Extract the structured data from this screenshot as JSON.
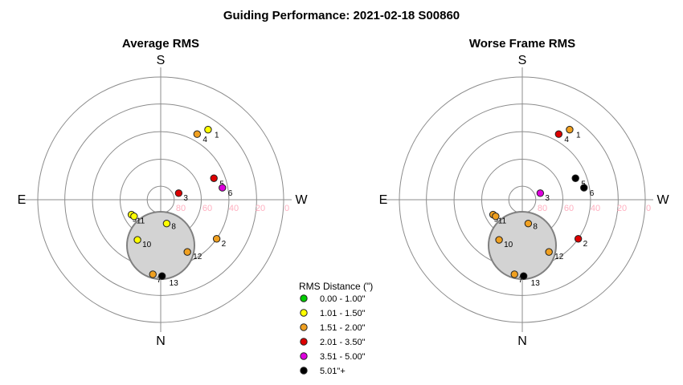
{
  "figure": {
    "title": "Guiding Performance: 2021-02-18 S00860"
  },
  "directions": {
    "south": "S",
    "north": "N",
    "east": "E",
    "west": "W"
  },
  "radial_ticks": [
    "80",
    "60",
    "40",
    "20",
    "0"
  ],
  "legend": {
    "title": "RMS Distance (\")",
    "entries": [
      {
        "label": "0.00 - 1.00\"",
        "color": "#00cc00"
      },
      {
        "label": "1.01 - 1.50\"",
        "color": "#ffff00"
      },
      {
        "label": "1.51 - 2.00\"",
        "color": "#f0a020"
      },
      {
        "label": "2.01 - 3.50\"",
        "color": "#dd0000"
      },
      {
        "label": "3.51 - 5.00\"",
        "color": "#dd00dd"
      },
      {
        "label": "5.01\"+",
        "color": "#000000"
      }
    ]
  },
  "chart_data": [
    {
      "type": "scatter",
      "coordinate_system": "polar (altitude 0-90 deg radial, azimuth; S top, N bottom, E left, W right)",
      "title": "Average RMS",
      "radial_ticks": [
        80,
        60,
        40,
        20,
        0
      ],
      "points": [
        {
          "label": "1",
          "alt": 28,
          "az": 326,
          "category": "1.01 - 1.50\""
        },
        {
          "label": "2",
          "alt": 40,
          "az": 235,
          "category": "1.51 - 2.00\""
        },
        {
          "label": "3",
          "alt": 76,
          "az": 290,
          "category": "2.01 - 3.50\""
        },
        {
          "label": "4",
          "alt": 35,
          "az": 331,
          "category": "1.51 - 2.00\""
        },
        {
          "label": "5",
          "alt": 48,
          "az": 292,
          "category": "2.01 - 3.50\""
        },
        {
          "label": "6",
          "alt": 44,
          "az": 281,
          "category": "3.51 - 5.00\""
        },
        {
          "label": "7",
          "alt": 35,
          "az": 174,
          "category": "1.51 - 2.00\""
        },
        {
          "label": "8",
          "alt": 72,
          "az": 194,
          "category": "1.01 - 1.50\""
        },
        {
          "label": "9",
          "alt": 66,
          "az": 117,
          "category": "1.01 - 1.50\""
        },
        {
          "label": "10",
          "alt": 56,
          "az": 150,
          "category": "1.01 - 1.50\""
        },
        {
          "label": "11",
          "alt": 67,
          "az": 122,
          "category": "1.01 - 1.50\""
        },
        {
          "label": "12",
          "alt": 47,
          "az": 207,
          "category": "1.51 - 2.00\""
        },
        {
          "label": "13",
          "alt": 34,
          "az": 181,
          "category": "5.01\"+"
        }
      ]
    },
    {
      "type": "scatter",
      "coordinate_system": "polar (altitude 0-90 deg radial, azimuth; S top, N bottom, E left, W right)",
      "title": "Worse Frame RMS",
      "radial_ticks": [
        80,
        60,
        40,
        20,
        0
      ],
      "points": [
        {
          "label": "1",
          "alt": 28,
          "az": 326,
          "category": "1.51 - 2.00\""
        },
        {
          "label": "2",
          "alt": 40,
          "az": 235,
          "category": "2.01 - 3.50\""
        },
        {
          "label": "3",
          "alt": 76,
          "az": 290,
          "category": "3.51 - 5.00\""
        },
        {
          "label": "4",
          "alt": 35,
          "az": 331,
          "category": "2.01 - 3.50\""
        },
        {
          "label": "5",
          "alt": 48,
          "az": 292,
          "category": "5.01\"+"
        },
        {
          "label": "6",
          "alt": 44,
          "az": 281,
          "category": "5.01\"+"
        },
        {
          "label": "7",
          "alt": 35,
          "az": 174,
          "category": "1.51 - 2.00\""
        },
        {
          "label": "8",
          "alt": 72,
          "az": 194,
          "category": "1.51 - 2.00\""
        },
        {
          "label": "9",
          "alt": 66,
          "az": 117,
          "category": "1.51 - 2.00\""
        },
        {
          "label": "10",
          "alt": 56,
          "az": 150,
          "category": "1.51 - 2.00\""
        },
        {
          "label": "11",
          "alt": 67,
          "az": 122,
          "category": "1.51 - 2.00\""
        },
        {
          "label": "12",
          "alt": 47,
          "az": 207,
          "category": "1.51 - 2.00\""
        },
        {
          "label": "13",
          "alt": 34,
          "az": 181,
          "category": "5.01\"+"
        }
      ]
    }
  ]
}
